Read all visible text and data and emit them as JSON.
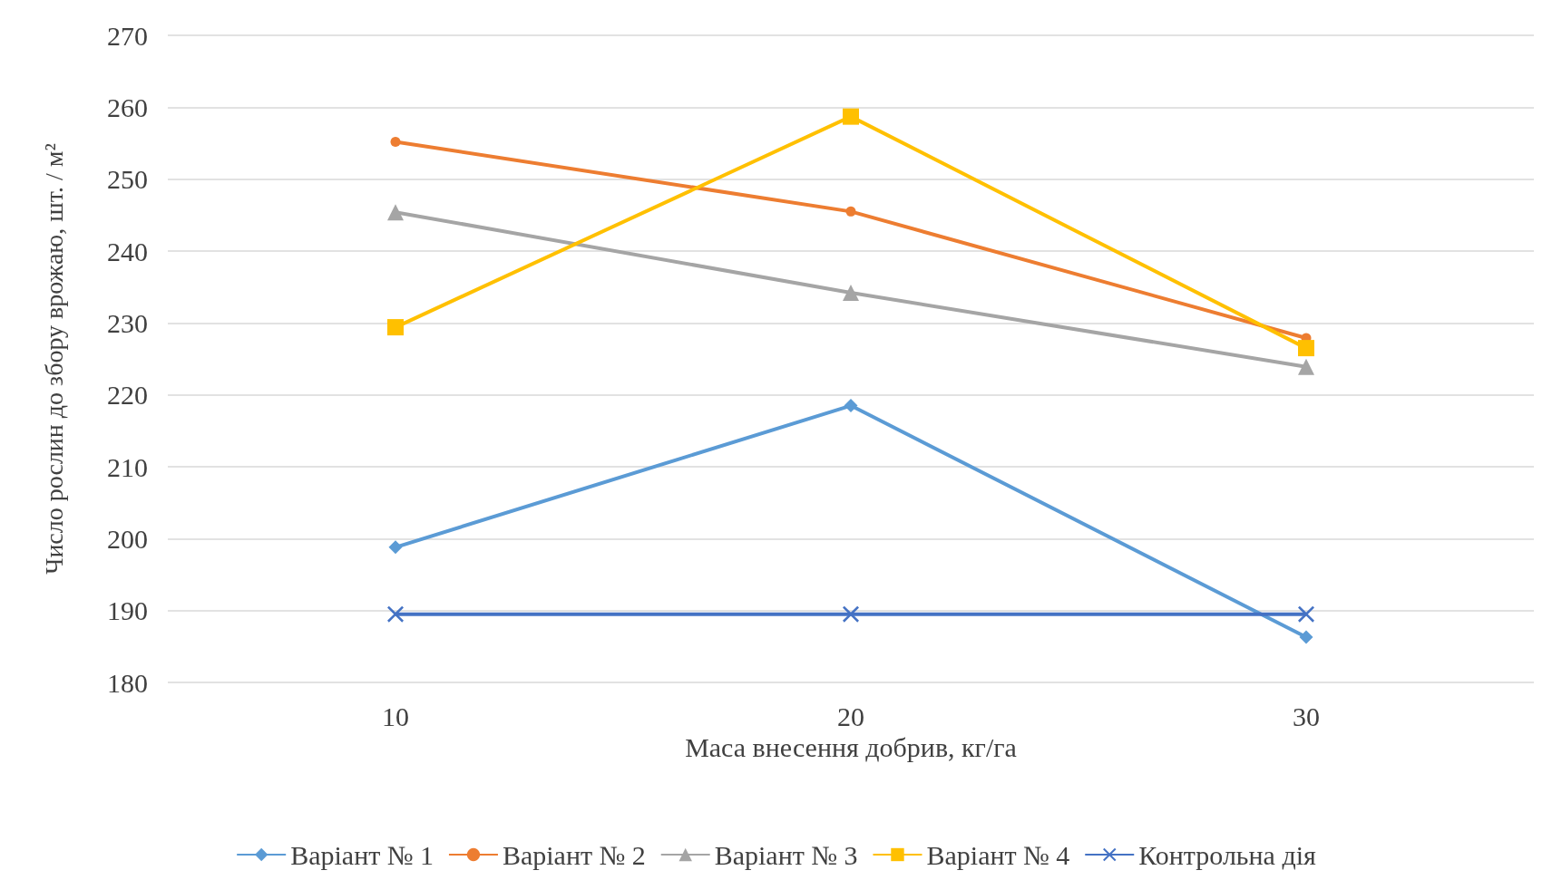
{
  "chart_data": {
    "type": "line",
    "xlabel": "Маса внесення добрив, кг/га",
    "ylabel": "Число рослин до збору врожаю, шт. / м²",
    "categories": [
      "10",
      "20",
      "30"
    ],
    "series": [
      {
        "name": "Варіант № 1",
        "color": "#5b9bd5",
        "marker": "diamond",
        "values": [
          198.8,
          218.5,
          186.3
        ]
      },
      {
        "name": "Варіант № 2",
        "color": "#ed7d31",
        "marker": "circle",
        "values": [
          255.2,
          245.5,
          227.9
        ]
      },
      {
        "name": "Варіант № 3",
        "color": "#a5a5a5",
        "marker": "triangle",
        "values": [
          245.4,
          234.2,
          223.9
        ]
      },
      {
        "name": "Варіант № 4",
        "color": "#ffc000",
        "marker": "square",
        "values": [
          229.4,
          258.7,
          226.5
        ]
      },
      {
        "name": "Контрольна дія",
        "color": "#4472c4",
        "marker": "cross",
        "values": [
          189.5,
          189.5,
          189.5
        ]
      }
    ],
    "ylim": [
      180,
      270
    ],
    "yticks": [
      180,
      190,
      200,
      210,
      220,
      230,
      240,
      250,
      260,
      270
    ],
    "grid": "y",
    "legend": "bottom"
  }
}
